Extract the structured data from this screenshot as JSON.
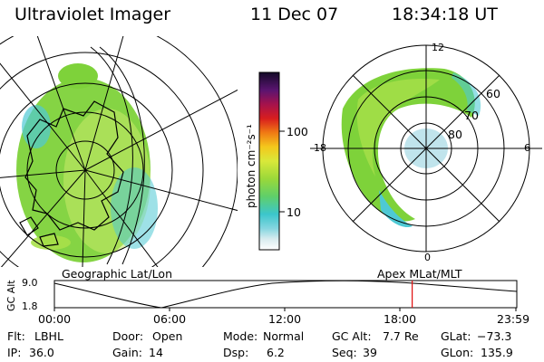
{
  "header": {
    "instrument": "Ultraviolet Imager",
    "date": "11 Dec 07",
    "time": "18:34:18 UT"
  },
  "colorbar": {
    "unit_label": "photon cm⁻²s⁻¹",
    "ticks": [
      "100",
      "10"
    ],
    "scale": "log"
  },
  "polar_plot": {
    "mlt_labels": [
      "12",
      "18",
      "6",
      "0"
    ],
    "mlat_labels": [
      "60",
      "70",
      "80"
    ]
  },
  "projection_labels": {
    "left": "Geographic Lat/Lon",
    "right": "Apex MLat/MLT"
  },
  "altitude_track": {
    "axis_title": "GC Alt",
    "y_ticks": [
      "9.0",
      "1.8"
    ],
    "ylim": [
      1.8,
      9.0
    ],
    "x_ticks": [
      "00:00",
      "06:00",
      "12:00",
      "18:00",
      "23:59"
    ],
    "current_time_hours": 18.57
  },
  "status": {
    "filter_label": "Flt:",
    "filter_value": "LBHL",
    "door_label": "Door:",
    "door_value": "Open",
    "mode_label": "Mode:",
    "mode_value": "Normal",
    "gcalt_label": "GC Alt:",
    "gcalt_value": "7.7 Re",
    "glat_label": "GLat:",
    "glat_value": "−73.3",
    "ip_label": "IP:",
    "ip_value": "36.0",
    "gain_label": "Gain:",
    "gain_value": "14",
    "dsp_label": "Dsp:",
    "dsp_value": "6.2",
    "seq_label": "Seq:",
    "seq_value": "39",
    "glon_label": "GLon:",
    "glon_value": "135.9"
  },
  "colors": {
    "marker": "#e01010",
    "aurora_green": "#7ed23a",
    "aurora_cyan": "#4ec9d4"
  }
}
